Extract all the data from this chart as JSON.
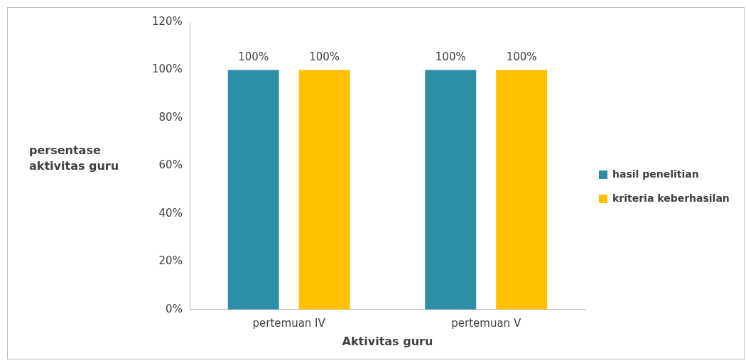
{
  "chart_data": {
    "type": "bar",
    "xlabel": "Aktivitas guru",
    "ylabel": "persentase aktivitas guru",
    "categories": [
      "pertemuan IV",
      "pertemuan V"
    ],
    "series": [
      {
        "name": "hasil penelitian",
        "color": "#2e8ea6",
        "values": [
          100,
          100
        ]
      },
      {
        "name": "kriteria keberhasilan",
        "color": "#ffc000",
        "values": [
          100,
          100
        ]
      }
    ],
    "ylim": [
      0,
      120
    ],
    "yticks": [
      {
        "value": 0,
        "label": "0%"
      },
      {
        "value": 20,
        "label": "20%"
      },
      {
        "value": 40,
        "label": "40%"
      },
      {
        "value": 60,
        "label": "60%"
      },
      {
        "value": 80,
        "label": "80%"
      },
      {
        "value": 100,
        "label": "100%"
      },
      {
        "value": 120,
        "label": "120%"
      }
    ],
    "value_labels": [
      "100%",
      "100%"
    ],
    "data_labels": false,
    "grid": false,
    "legend": "right"
  }
}
